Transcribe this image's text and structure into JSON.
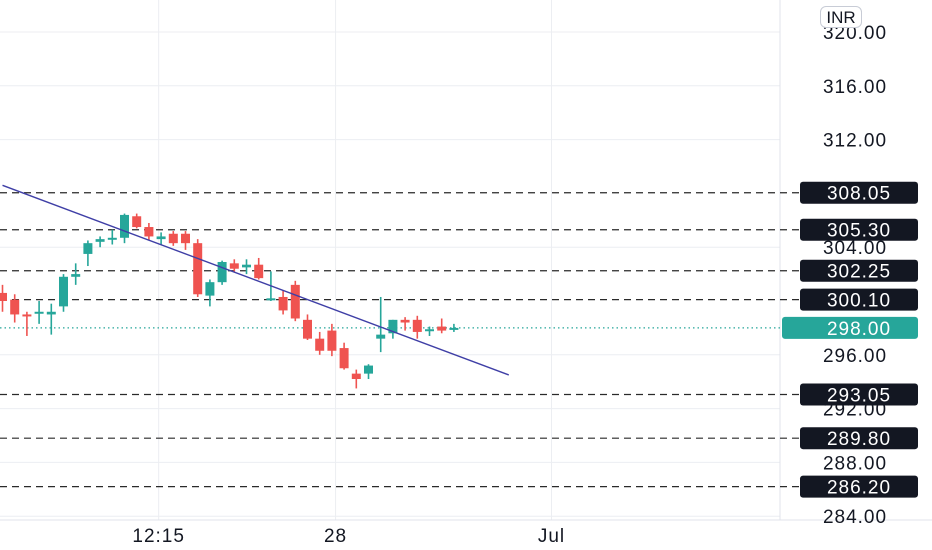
{
  "chart_data": {
    "type": "candlestick",
    "currency": "INR",
    "y_ticks": [
      "320.00",
      "316.00",
      "312.00",
      "304.00",
      "296.00",
      "292.00",
      "288.00",
      "284.00"
    ],
    "x_ticks": [
      {
        "label": "12:15",
        "index": 12.8
      },
      {
        "label": "28",
        "index": 27.3
      },
      {
        "label": "Jul",
        "index": 45.0
      }
    ],
    "ylim": [
      283.5,
      322
    ],
    "last_price": {
      "value": 298.0,
      "label": "298.00",
      "color": "#26a69a"
    },
    "horizontal_levels": [
      {
        "value": 308.05,
        "label": "308.05"
      },
      {
        "value": 305.3,
        "label": "305.30"
      },
      {
        "value": 302.25,
        "label": "302.25"
      },
      {
        "value": 300.1,
        "label": "300.10"
      },
      {
        "value": 293.05,
        "label": "293.05"
      },
      {
        "value": 289.8,
        "label": "289.80"
      },
      {
        "value": 286.2,
        "label": "286.20"
      }
    ],
    "trendline": {
      "from": {
        "index": 0,
        "value": 308.6
      },
      "to": {
        "index": 41.5,
        "value": 294.5
      },
      "color": "#3f3fa6"
    },
    "colors": {
      "up": "#26a69a",
      "down": "#ef5350",
      "grid": "#eceef2",
      "level_line": "#2a2a2a",
      "label_bg": "#131722"
    },
    "candles": [
      {
        "o": 300.6,
        "h": 301.2,
        "l": 299.2,
        "c": 300.0
      },
      {
        "o": 300.1,
        "h": 300.5,
        "l": 298.4,
        "c": 299.0
      },
      {
        "o": 299.0,
        "h": 299.2,
        "l": 297.4,
        "c": 298.9
      },
      {
        "o": 299.1,
        "h": 300.0,
        "l": 298.3,
        "c": 299.2
      },
      {
        "o": 299.0,
        "h": 299.8,
        "l": 297.5,
        "c": 299.2
      },
      {
        "o": 299.6,
        "h": 302.0,
        "l": 299.2,
        "c": 301.8
      },
      {
        "o": 301.8,
        "h": 302.8,
        "l": 301.2,
        "c": 302.0
      },
      {
        "o": 303.5,
        "h": 304.5,
        "l": 302.6,
        "c": 304.3
      },
      {
        "o": 304.4,
        "h": 304.8,
        "l": 304.0,
        "c": 304.6
      },
      {
        "o": 304.6,
        "h": 305.3,
        "l": 304.2,
        "c": 304.7
      },
      {
        "o": 304.7,
        "h": 306.5,
        "l": 304.3,
        "c": 306.4
      },
      {
        "o": 306.3,
        "h": 306.5,
        "l": 305.4,
        "c": 305.5
      },
      {
        "o": 305.5,
        "h": 305.8,
        "l": 304.5,
        "c": 304.8
      },
      {
        "o": 304.6,
        "h": 305.1,
        "l": 304.2,
        "c": 304.8
      },
      {
        "o": 305.0,
        "h": 305.2,
        "l": 304.1,
        "c": 304.3
      },
      {
        "o": 305.0,
        "h": 305.2,
        "l": 303.8,
        "c": 304.3
      },
      {
        "o": 304.3,
        "h": 304.6,
        "l": 300.3,
        "c": 300.5
      },
      {
        "o": 300.4,
        "h": 301.6,
        "l": 299.6,
        "c": 301.4
      },
      {
        "o": 301.4,
        "h": 303.0,
        "l": 301.2,
        "c": 302.9
      },
      {
        "o": 302.8,
        "h": 303.1,
        "l": 302.2,
        "c": 302.4
      },
      {
        "o": 302.5,
        "h": 303.1,
        "l": 302.0,
        "c": 302.7
      },
      {
        "o": 302.7,
        "h": 303.2,
        "l": 301.6,
        "c": 301.7
      },
      {
        "o": 300.2,
        "h": 302.2,
        "l": 300.0,
        "c": 300.2
      },
      {
        "o": 300.3,
        "h": 300.8,
        "l": 299.0,
        "c": 299.3
      },
      {
        "o": 301.2,
        "h": 301.5,
        "l": 298.5,
        "c": 298.7
      },
      {
        "o": 298.6,
        "h": 299.0,
        "l": 297.1,
        "c": 297.2
      },
      {
        "o": 297.2,
        "h": 297.7,
        "l": 296.0,
        "c": 296.3
      },
      {
        "o": 297.8,
        "h": 298.3,
        "l": 295.9,
        "c": 296.3
      },
      {
        "o": 296.5,
        "h": 296.9,
        "l": 294.9,
        "c": 295.0
      },
      {
        "o": 294.6,
        "h": 294.9,
        "l": 293.5,
        "c": 294.2
      },
      {
        "o": 294.6,
        "h": 295.3,
        "l": 294.2,
        "c": 295.2
      },
      {
        "o": 297.2,
        "h": 300.3,
        "l": 296.2,
        "c": 297.5
      },
      {
        "o": 297.6,
        "h": 298.6,
        "l": 297.2,
        "c": 298.6
      },
      {
        "o": 298.6,
        "h": 298.8,
        "l": 297.8,
        "c": 298.4
      },
      {
        "o": 298.6,
        "h": 298.9,
        "l": 297.2,
        "c": 297.7
      },
      {
        "o": 297.8,
        "h": 298.1,
        "l": 297.4,
        "c": 297.9
      },
      {
        "o": 298.1,
        "h": 298.7,
        "l": 297.6,
        "c": 297.8
      },
      {
        "o": 298.0,
        "h": 298.3,
        "l": 297.7,
        "c": 298.0
      }
    ]
  }
}
